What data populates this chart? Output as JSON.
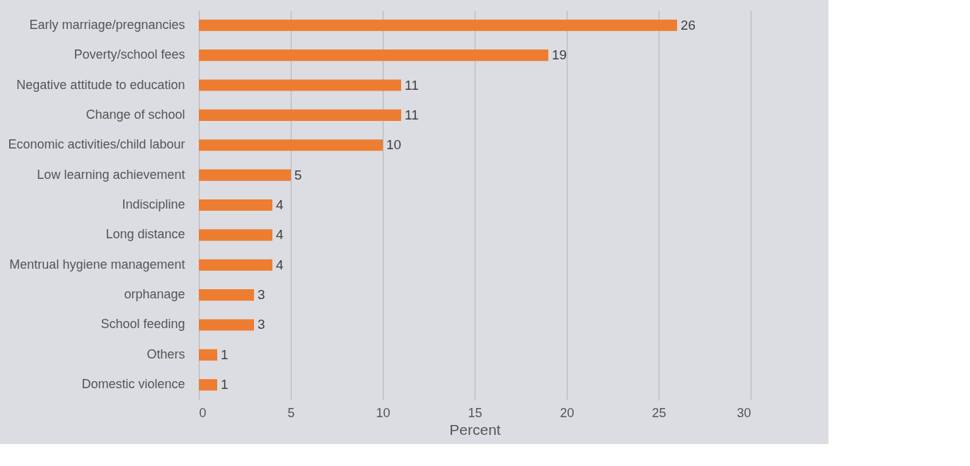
{
  "chart_data": {
    "type": "bar",
    "orientation": "horizontal",
    "xlabel": "Percent",
    "categories": [
      "Early marriage/pregnancies",
      "Poverty/school fees",
      "Negative attitude to education",
      "Change of school",
      "Economic activities/child labour",
      "Low learning achievement",
      "Indiscipline",
      "Long distance",
      "Mentrual hygiene management",
      "orphanage",
      "School feeding",
      "Others",
      "Domestic violence"
    ],
    "values": [
      26,
      19,
      11,
      11,
      10,
      5,
      4,
      4,
      4,
      3,
      3,
      1,
      1
    ],
    "color": "#ed7d31",
    "xlim": [
      0,
      30
    ],
    "xticks": [
      0,
      5,
      10,
      15,
      20,
      25,
      30
    ],
    "grid": "x",
    "data_labels": true
  }
}
